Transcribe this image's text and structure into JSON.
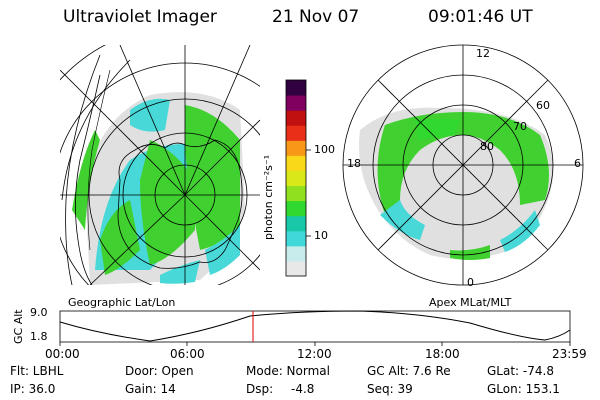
{
  "header": {
    "instrument": "Ultraviolet Imager",
    "date": "21 Nov 07",
    "time": "09:01:46 UT"
  },
  "geo_panel": {
    "label": "Geographic Lat/Lon"
  },
  "colorbar": {
    "unit_label": "photon cm⁻²s⁻¹",
    "tick_100": "100",
    "tick_10": "10",
    "scale": "log",
    "colors": [
      "#e8e8e8",
      "#c8ecec",
      "#40d8d8",
      "#18c8a8",
      "#30d830",
      "#90e020",
      "#d8e818",
      "#f8d818",
      "#f89818",
      "#e83018",
      "#c01010",
      "#800060",
      "#300040"
    ]
  },
  "polar_panel": {
    "label": "Apex MLat/MLT",
    "mlt_labels": {
      "top": "12",
      "left": "18",
      "right": "6",
      "bottom": "0"
    },
    "mlat_labels": [
      "60",
      "70",
      "80"
    ]
  },
  "altitude_plot": {
    "ylabel": "GC Alt",
    "ytick_max": "9.0",
    "ytick_min": "1.8",
    "xticks": [
      "00:00",
      "06:00",
      "12:00",
      "18:00",
      "23:59"
    ],
    "current_time_marker": "09:01:46"
  },
  "status": {
    "flt": "Flt: LBHL",
    "ip": "IP: 36.0",
    "door": "Door: Open",
    "gain": "Gain: 14",
    "mode": "Mode: Normal",
    "dsp": "Dsp:",
    "dsp_value": "-4.8",
    "gc_alt": "GC Alt: 7.6 Re",
    "seq": "Seq: 39",
    "glat": "GLat: -74.8",
    "glon": "GLon: 153.1"
  }
}
